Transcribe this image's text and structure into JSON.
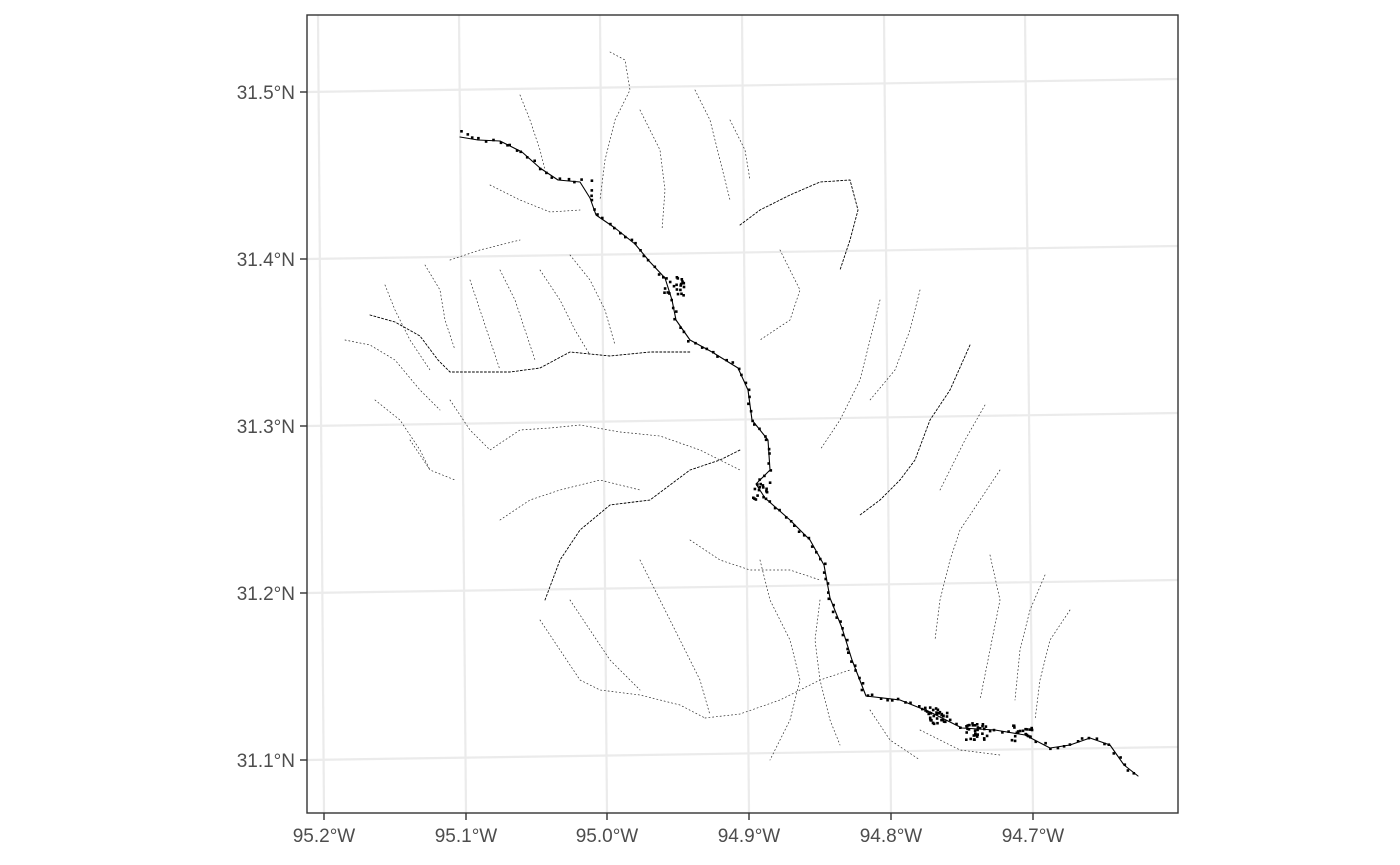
{
  "map": {
    "lat_labels": [
      "31.1°N",
      "31.2°N",
      "31.3°N",
      "31.4°N",
      "31.5°N"
    ],
    "lon_labels": [
      "95.2°W",
      "95.1°W",
      "95.0°W",
      "94.9°W",
      "94.8°W",
      "94.7°W"
    ],
    "layers": [
      "stream network",
      "river sample points"
    ],
    "colors": {
      "background": "#ffffff",
      "grid": "#ebebeb",
      "border": "#333333",
      "features": "#000000",
      "tick_text": "#4d4d4d"
    }
  }
}
